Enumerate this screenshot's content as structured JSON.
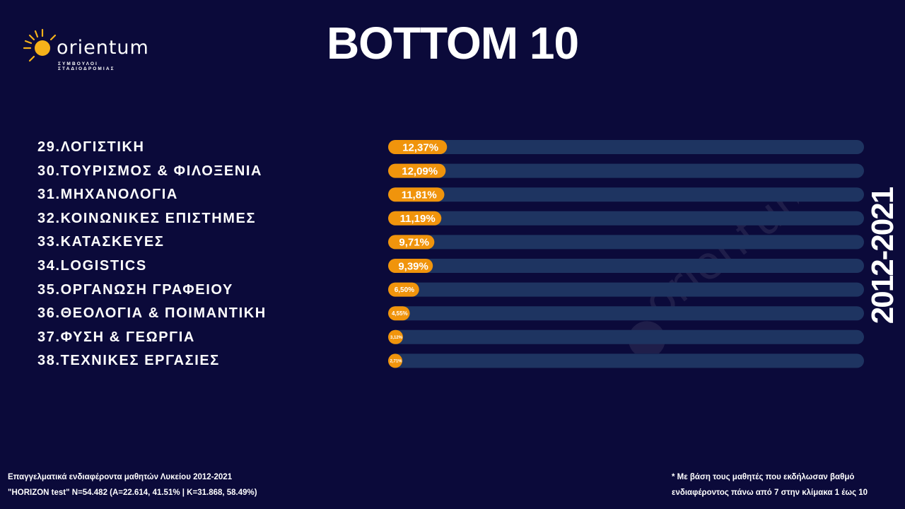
{
  "logo": {
    "name": "orientum",
    "tagline": "ΣΥΜΒΟΥΛΟΙ ΣΤΑΔΙΟΔΡΟΜΙΑΣ"
  },
  "header": {
    "title": "BOTTOM 10",
    "period": "2012-2021"
  },
  "chart_data": {
    "type": "bar",
    "orientation": "horizontal",
    "categories": [
      "29.ΛΟΓΙΣΤΙΚΗ",
      "30.ΤΟΥΡΙΣΜΟΣ & ΦΙΛΟΞΕΝΙΑ",
      "31.ΜΗΧΑΝΟΛΟΓΙΑ",
      "32.ΚΟΙΝΩΝΙΚΕΣ ΕΠΙΣΤΗΜΕΣ",
      "33.ΚΑΤΑΣΚΕΥΕΣ",
      "34.LOGISTICS",
      "35.ΟΡΓΑΝΩΣΗ ΓΡΑΦΕΙΟΥ",
      "36.ΘΕΟΛΟΓΙΑ & ΠΟΙΜΑΝΤΙΚΗ",
      "37.ΦΥΣΗ & ΓΕΩΡΓΙΑ",
      "38.ΤΕΧΝΙΚΕΣ ΕΡΓΑΣΙΕΣ"
    ],
    "values": [
      12.37,
      12.09,
      11.81,
      11.19,
      9.71,
      9.39,
      6.5,
      4.55,
      3.12,
      2.71
    ],
    "value_labels": [
      "12,37%",
      "12,09%",
      "11,81%",
      "11,19%",
      "9,71%",
      "9,39%",
      "6,50%",
      "4,55%",
      "3,12%",
      "2,71%"
    ],
    "xlim": [
      0,
      100
    ],
    "bar_color": "#f0940c",
    "track_color": "#1e3461",
    "grid": false,
    "legend": "none"
  },
  "footer": {
    "left_line1": "Επαγγελματικά ενδιαφέροντα μαθητών Λυκείου 2012-2021",
    "left_line2": "\"HORIZON test\"  N=54.482 (A=22.614, 41.51% | K=31.868, 58.49%)",
    "right_line1": "* Με βάση τους μαθητές που εκδήλωσαν βαθμό",
    "right_line2": "ενδιαφέροντος πάνω από 7 στην κλίμακα 1 έως 10"
  },
  "colors": {
    "background": "#0b0a3a",
    "accent": "#f0940c",
    "text": "#ffffff"
  }
}
